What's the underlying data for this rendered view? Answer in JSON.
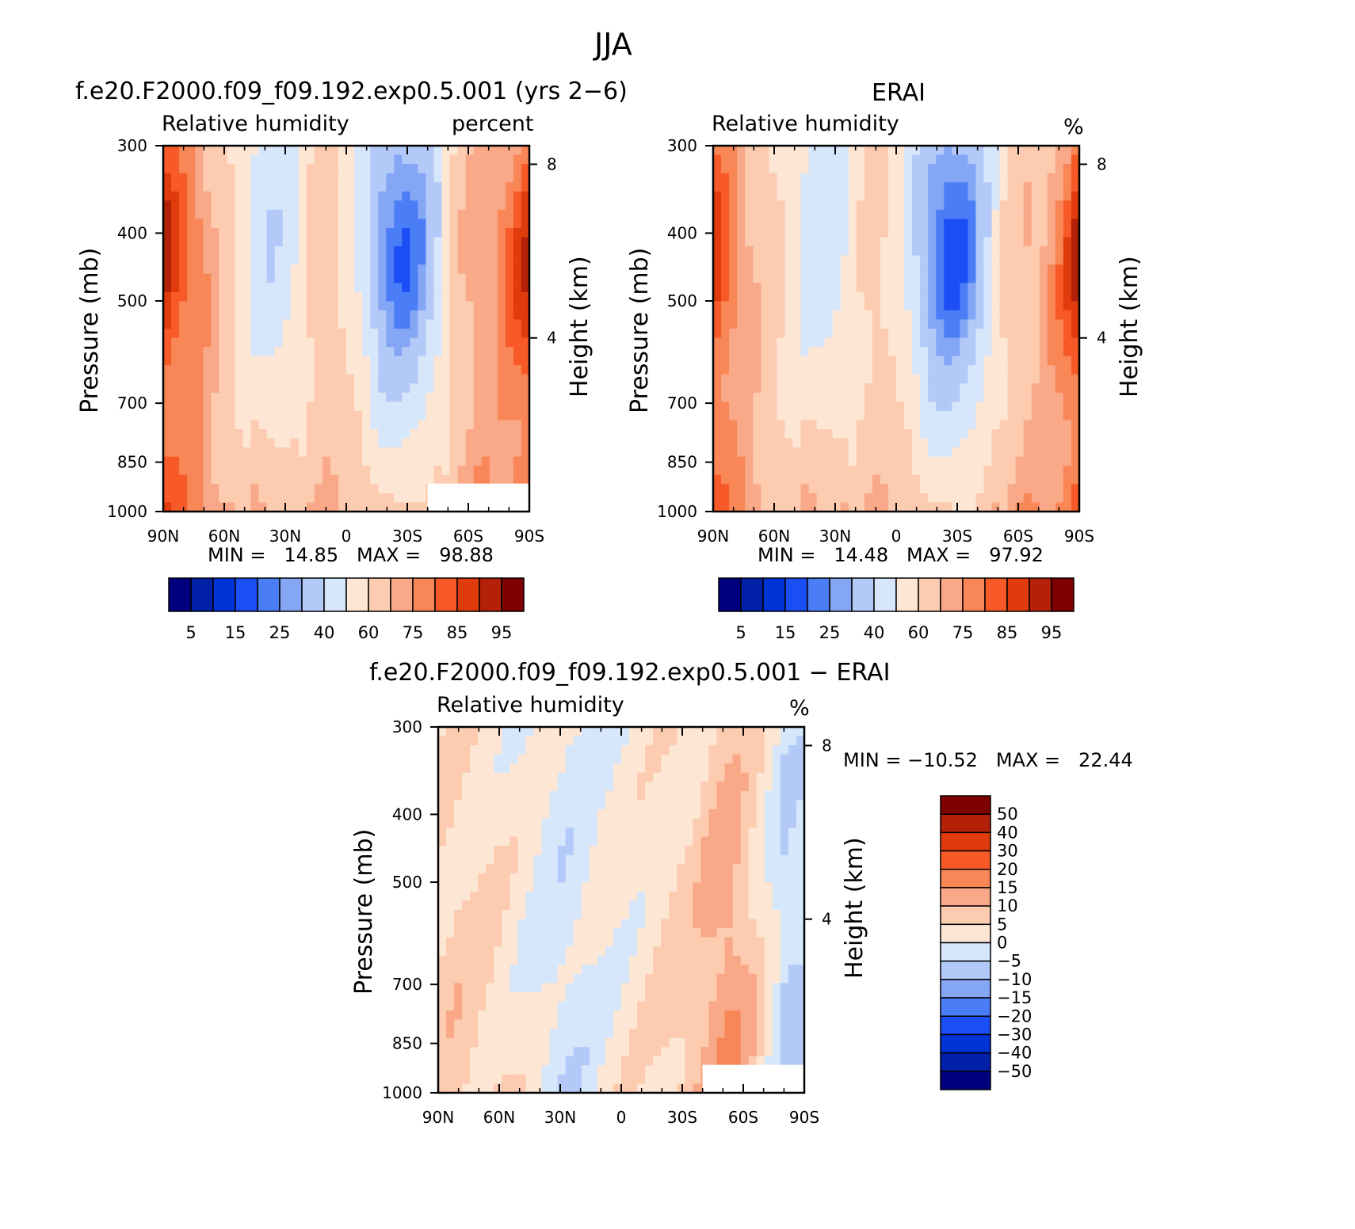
{
  "figure_title": "JJA",
  "chart_data": [
    {
      "type": "heatmap",
      "title": "f.e20.F2000.f09_f09.192.exp0.5.001 (yrs 2−6)",
      "variable": "Relative humidity",
      "units": "percent",
      "x_ticklabels": [
        "90N",
        "60N",
        "30N",
        "0",
        "30S",
        "60S",
        "90S"
      ],
      "x_values": [
        90,
        60,
        30,
        0,
        -30,
        -60,
        -90
      ],
      "y_ticklabels": [
        "300",
        "400",
        "500",
        "700",
        "850",
        "1000"
      ],
      "y_values": [
        300,
        400,
        500,
        700,
        850,
        1000
      ],
      "ylabel": "Pressure (mb)",
      "ylabel_right": "Height (km)",
      "y2_ticklabels": [
        "8",
        "4"
      ],
      "y2_values": [
        8,
        4
      ],
      "min_label": "MIN =",
      "min_value": "14.85",
      "max_label": "MAX =",
      "max_value": "98.88",
      "colorbar_labels": [
        "5",
        "15",
        "25",
        "40",
        "60",
        "75",
        "85",
        "95"
      ],
      "zonal_profile": [
        92,
        84,
        78,
        70,
        58,
        45,
        40,
        45,
        60,
        66,
        58,
        42,
        24,
        18,
        24,
        40,
        66,
        74,
        76,
        82,
        90
      ]
    },
    {
      "type": "heatmap",
      "title": "ERAI",
      "variable": "Relative humidity",
      "units": "%",
      "x_ticklabels": [
        "90N",
        "60N",
        "30N",
        "0",
        "30S",
        "60S",
        "90S"
      ],
      "x_values": [
        90,
        60,
        30,
        0,
        -30,
        -60,
        -90
      ],
      "y_ticklabels": [
        "300",
        "400",
        "500",
        "700",
        "850",
        "1000"
      ],
      "y_values": [
        300,
        400,
        500,
        700,
        850,
        1000
      ],
      "ylabel": "Pressure (mb)",
      "ylabel_right": "Height (km)",
      "y2_ticklabels": [
        "8",
        "4"
      ],
      "y2_values": [
        8,
        4
      ],
      "min_label": "MIN =",
      "min_value": "14.48",
      "max_label": "MAX =",
      "max_value": "97.92",
      "colorbar_labels": [
        "5",
        "15",
        "25",
        "40",
        "60",
        "75",
        "85",
        "95"
      ],
      "zonal_profile": [
        88,
        80,
        72,
        66,
        56,
        46,
        42,
        46,
        58,
        64,
        56,
        40,
        22,
        16,
        22,
        40,
        62,
        70,
        72,
        80,
        92
      ]
    },
    {
      "type": "heatmap",
      "title": "f.e20.F2000.f09_f09.192.exp0.5.001 − ERAI",
      "variable": "Relative humidity",
      "units": "%",
      "x_ticklabels": [
        "90N",
        "60N",
        "30N",
        "0",
        "30S",
        "60S",
        "90S"
      ],
      "x_values": [
        90,
        60,
        30,
        0,
        -30,
        -60,
        -90
      ],
      "y_ticklabels": [
        "300",
        "400",
        "500",
        "700",
        "850",
        "1000"
      ],
      "y_values": [
        300,
        400,
        500,
        700,
        850,
        1000
      ],
      "ylabel": "Pressure (mb)",
      "ylabel_right": "Height (km)",
      "y2_ticklabels": [
        "8",
        "4"
      ],
      "y2_values": [
        8,
        4
      ],
      "min_label": "MIN =",
      "min_value": "−10.52",
      "max_label": "MAX =",
      "max_value": "22.44",
      "colorbar_labels": [
        "50",
        "40",
        "30",
        "20",
        "15",
        "10",
        "5",
        "0",
        "−5",
        "−10",
        "−15",
        "−20",
        "−30",
        "−40",
        "−50"
      ],
      "zonal_profile": [
        6,
        7,
        6,
        5,
        3,
        1,
        -2,
        -3,
        -2,
        1,
        2,
        3,
        4,
        6,
        8,
        12,
        14,
        9,
        2,
        -6,
        -4
      ]
    }
  ],
  "colors": {
    "abs_scale": [
      "#00007f",
      "#0020a8",
      "#0033d6",
      "#1c4ef5",
      "#4b7df7",
      "#84a6f5",
      "#b3c9f7",
      "#d6e6fb",
      "#fde6d3",
      "#fccbb0",
      "#f9a888",
      "#f88656",
      "#f85a27",
      "#e03b0c",
      "#b22108",
      "#7f0000"
    ],
    "diff_scale": [
      "#00007f",
      "#0020a8",
      "#0033d6",
      "#1c4ef5",
      "#4b7df7",
      "#84a6f5",
      "#b3c9f7",
      "#d6e6fb",
      "#fde6d3",
      "#fccbb0",
      "#f9a888",
      "#f88656",
      "#f85a27",
      "#e03b0c",
      "#b22108",
      "#7f0000"
    ]
  }
}
